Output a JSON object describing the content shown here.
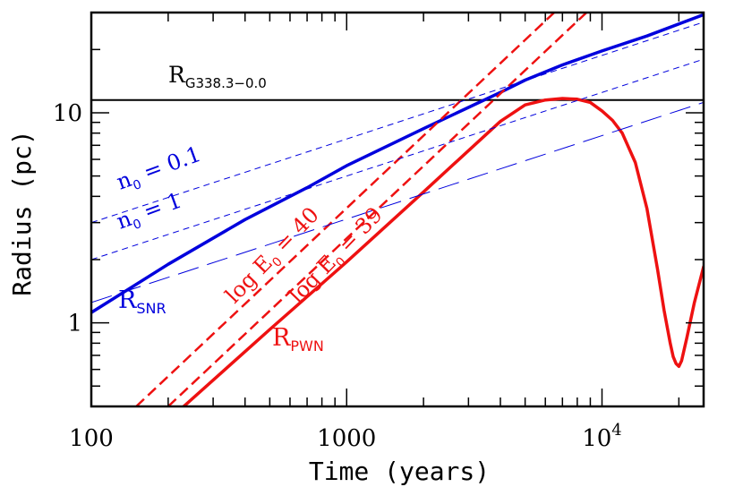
{
  "chart_data": {
    "type": "line",
    "xscale": "log",
    "yscale": "log",
    "xlim": [
      100,
      25000
    ],
    "ylim": [
      0.4,
      30
    ],
    "xlabel": "Time (years)",
    "ylabel": "Radius (pc)",
    "x_ticks": [
      {
        "value": 100,
        "label": "100"
      },
      {
        "value": 1000,
        "label": "1000"
      },
      {
        "value": 10000,
        "label": "10",
        "sup": "4"
      }
    ],
    "y_ticks": [
      {
        "value": 1,
        "label": "1"
      },
      {
        "value": 10,
        "label": "10"
      }
    ],
    "reference_line": {
      "value": 11.5,
      "label": "R",
      "sub": "G338.3−0.0"
    },
    "series": [
      {
        "name": "R_SNR",
        "color": "#0000dd",
        "style": "solid",
        "width": 3.5,
        "x": [
          100,
          200,
          400,
          700,
          1000,
          2000,
          3000,
          4000,
          5000,
          7000,
          10000,
          15000,
          25000
        ],
        "y": [
          1.12,
          1.9,
          3.1,
          4.4,
          5.6,
          8.4,
          10.6,
          12.5,
          14.3,
          16.9,
          19.7,
          23.2,
          29.3
        ]
      },
      {
        "name": "R_PWN",
        "color": "#ee1111",
        "style": "solid",
        "width": 3.5,
        "x": [
          230,
          500,
          1000,
          2000,
          3000,
          4000,
          5000,
          6000,
          7000,
          8000,
          9000,
          10000,
          11000,
          12000,
          13500,
          15000,
          16500,
          17500,
          18500,
          19000,
          19500,
          20000,
          20500,
          21500,
          23000,
          25000
        ],
        "y": [
          0.4,
          0.93,
          1.95,
          4.2,
          6.6,
          9.1,
          10.9,
          11.5,
          11.7,
          11.6,
          11.2,
          10.2,
          9.2,
          8.0,
          5.8,
          3.5,
          1.8,
          1.15,
          0.8,
          0.69,
          0.64,
          0.62,
          0.66,
          0.85,
          1.25,
          1.85
        ]
      },
      {
        "name": "log E0 = 40",
        "color": "#ee1111",
        "style": "short-dash",
        "width": 2.5,
        "x": [
          150,
          6500
        ],
        "y": [
          0.4,
          30
        ]
      },
      {
        "name": "log E0 = 39",
        "color": "#ee1111",
        "style": "short-dash",
        "width": 2.5,
        "x": [
          200,
          8700
        ],
        "y": [
          0.4,
          30
        ]
      },
      {
        "name": "n0 = 0.1",
        "color": "#0000dd",
        "style": "dash",
        "width": 1,
        "x": [
          100,
          25000
        ],
        "y": [
          3.0,
          27.0
        ]
      },
      {
        "name": "n0 = 1",
        "color": "#0000dd",
        "style": "dash",
        "width": 1,
        "x": [
          100,
          25000
        ],
        "y": [
          2.0,
          18.0
        ]
      },
      {
        "name": "long-dash",
        "color": "#0000dd",
        "style": "long-dash",
        "width": 1,
        "x": [
          100,
          25000
        ],
        "y": [
          1.25,
          11.2
        ]
      }
    ],
    "annotations": [
      {
        "id": "r-snr",
        "text": "R",
        "sub": "SNR",
        "color": "#0000dd"
      },
      {
        "id": "r-pwn",
        "text": "R",
        "sub": "PWN",
        "color": "#ee1111"
      },
      {
        "id": "n0-01",
        "text": "n",
        "sub": "0",
        "rest": " = 0.1",
        "color": "#0000dd"
      },
      {
        "id": "n0-1",
        "text": "n",
        "sub": "0",
        "rest": " = 1",
        "color": "#0000dd"
      },
      {
        "id": "loge-40",
        "text": "log E",
        "sub": "0",
        "rest": " = 40",
        "color": "#ee1111"
      },
      {
        "id": "loge-39",
        "text": "log E",
        "sub": "0",
        "rest": " = 39",
        "color": "#ee1111"
      }
    ]
  }
}
